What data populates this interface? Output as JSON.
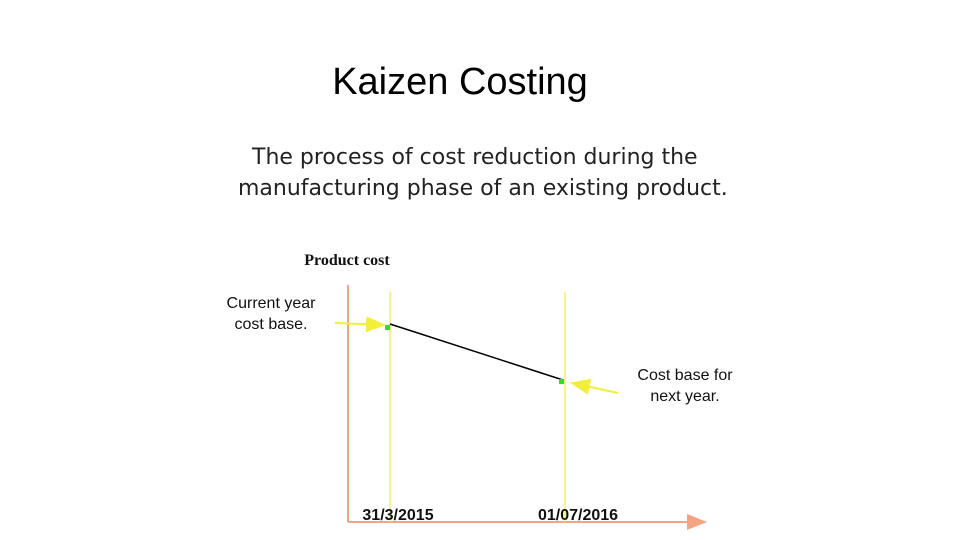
{
  "title": "Kaizen Costing",
  "description": [
    "The process of cost reduction during the",
    "manufacturing phase of an existing product."
  ],
  "diagram": {
    "y_axis_label": "Product cost",
    "annotations": [
      {
        "lines": [
          "Current year",
          "cost base."
        ]
      },
      {
        "lines": [
          "Cost base for",
          "next year."
        ]
      }
    ],
    "dates": [
      "31/3/2015",
      "01/07/2016"
    ]
  }
}
